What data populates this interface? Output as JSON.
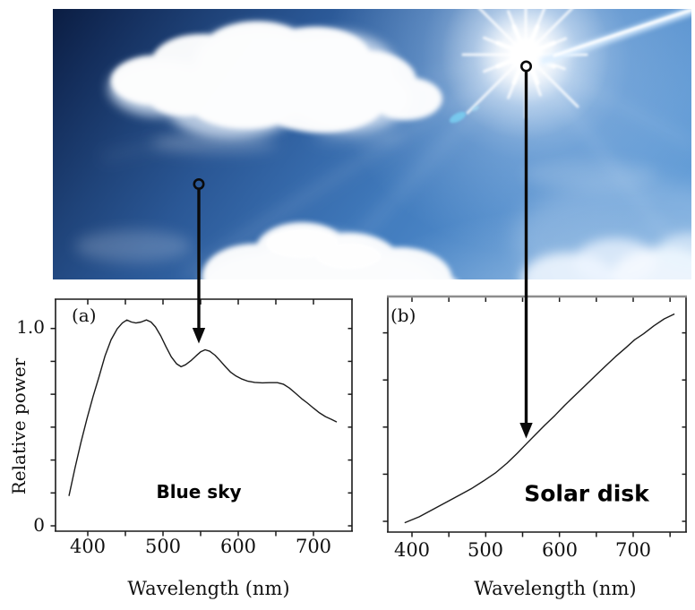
{
  "figure": {
    "photo": {
      "subject": "Blue sky with cumulus clouds and bright sun"
    },
    "colors": {
      "curve": "#1a1a1a",
      "frame": "#1a1a1a",
      "frame_top_b": "#8d8d8d",
      "arrow": "#0a0a0a",
      "sky_dark": "#0b1d42",
      "sky_mid": "#3a6cab",
      "sky_light": "#6ca4db",
      "annotation_text": "#000000",
      "axis_text": "#111111"
    },
    "panels": {
      "a": {
        "tag": "(a)",
        "annotation": "Blue sky",
        "xlabel": "Wavelength (nm)",
        "ylabel": "Relative power",
        "xtick_labels": [
          "400",
          "500",
          "600",
          "700"
        ],
        "ytick_labels": [
          "1.0",
          "0"
        ]
      },
      "b": {
        "tag": "(b)",
        "annotation": "Solar disk",
        "xlabel": "Wavelength (nm)",
        "xtick_labels": [
          "400",
          "500",
          "600",
          "700"
        ]
      }
    }
  },
  "chart_data": [
    {
      "type": "line",
      "panel": "(a)",
      "title": "Blue sky",
      "xlabel": "Wavelength (nm)",
      "ylabel": "Relative power",
      "xlim": [
        357,
        751
      ],
      "ylim": [
        0,
        1.17
      ],
      "xticks": [
        400,
        450,
        500,
        550,
        600,
        650,
        700
      ],
      "yticks_labeled": [
        1.0,
        0
      ],
      "grid": false,
      "legend": false,
      "series": [
        {
          "name": "Blue sky spectral power",
          "x": [
            375,
            383,
            391,
            399,
            407,
            415,
            423,
            431,
            439,
            446,
            452,
            458,
            464,
            471,
            478,
            484,
            490,
            497,
            504,
            511,
            518,
            524,
            530,
            537,
            544,
            550,
            556,
            562,
            569,
            576,
            583,
            590,
            597,
            605,
            613,
            622,
            632,
            642,
            652,
            660,
            668,
            676,
            684,
            692,
            700,
            708,
            716,
            724,
            731
          ],
          "y": [
            0.15,
            0.29,
            0.42,
            0.54,
            0.65,
            0.75,
            0.855,
            0.935,
            0.99,
            1.02,
            1.035,
            1.025,
            1.02,
            1.025,
            1.035,
            1.025,
            1.0,
            0.955,
            0.9,
            0.85,
            0.815,
            0.8,
            0.81,
            0.83,
            0.855,
            0.875,
            0.885,
            0.878,
            0.858,
            0.83,
            0.8,
            0.772,
            0.753,
            0.738,
            0.727,
            0.721,
            0.719,
            0.72,
            0.72,
            0.712,
            0.693,
            0.667,
            0.64,
            0.617,
            0.592,
            0.568,
            0.549,
            0.535,
            0.522
          ]
        }
      ]
    },
    {
      "type": "line",
      "panel": "(b)",
      "title": "Solar disk",
      "xlabel": "Wavelength (nm)",
      "ylabel": "",
      "xlim": [
        367,
        771
      ],
      "ylim": [
        0,
        1.18
      ],
      "xticks": [
        400,
        450,
        500,
        550,
        600,
        650,
        700,
        750
      ],
      "grid": false,
      "legend": false,
      "series": [
        {
          "name": "Solar disk spectral power",
          "x": [
            390,
            410,
            430,
            450,
            465,
            480,
            497,
            513,
            529,
            543,
            556,
            568,
            580,
            594,
            607,
            621,
            635,
            649,
            663,
            676,
            690,
            702,
            714,
            728,
            742,
            756
          ],
          "y": [
            0.02,
            0.05,
            0.09,
            0.13,
            0.16,
            0.19,
            0.23,
            0.27,
            0.32,
            0.37,
            0.42,
            0.465,
            0.51,
            0.56,
            0.61,
            0.66,
            0.71,
            0.76,
            0.81,
            0.855,
            0.9,
            0.94,
            0.97,
            1.01,
            1.045,
            1.07
          ]
        }
      ]
    }
  ]
}
